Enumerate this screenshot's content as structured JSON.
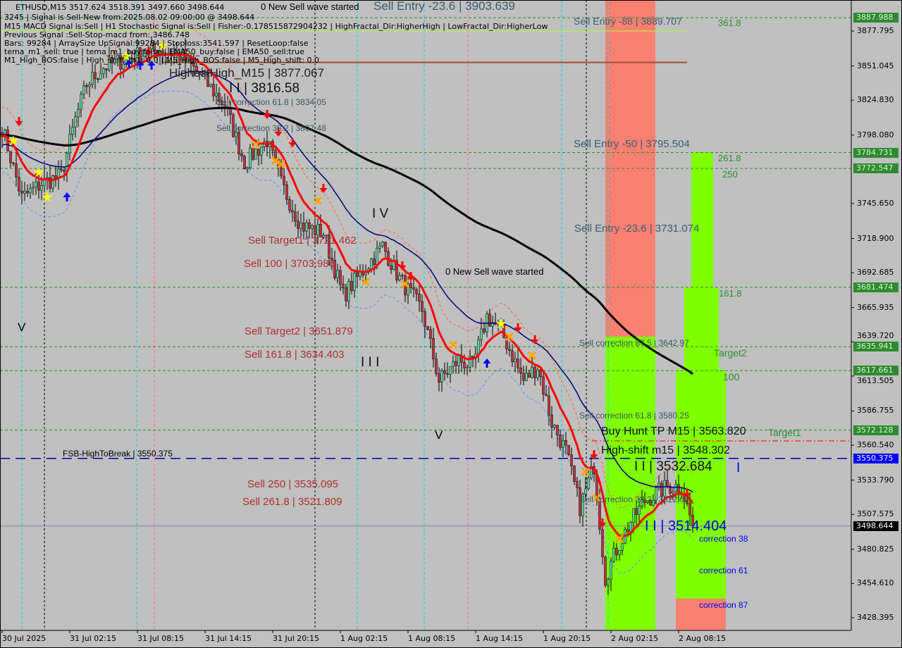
{
  "header": {
    "symbol_line": "ETHUSD,M15  3517.624 3518.391 3497.660 3498.644",
    "info_lines": [
      "3245 | Signal is Sell-New from:2025.08.02 09:00:00 @ 3498.644",
      "M15 MACD Signal is:Sell | H1 Stochastic Signal is:Sell | Fisher:-0.178515872904232 | HighFractal_Dir:HigherHigh | LowFractal_Dir:HigherLow",
      "Previous Signal :Sell-Stop-macd from: 3486.748",
      "Bars: 99284 | ArraySize UpSignal:99284 | Stoploss:3541.597 | ResetLoop:false",
      "tema_m1_sell: true | tema_m1_buy:false | EMA50_buy:false | EMA50_sell:true",
      "M1_High_BOS:false | High_shift_m1: 0.0 | M5_High_BOS:false | M5_High_shift: 0.0"
    ]
  },
  "labels": {
    "new_wave_top": "0 New Sell wave started",
    "sell_entry_top": "Sell Entry -23.6 | 3903.639",
    "highest_high": "HighestHigh_M15 | 3877.067",
    "wave_ii_top": "I I | 3816.58",
    "sell_corr_618_top": "Sell correction 61.8 | 3834.05",
    "sell_corr_382_top": "Sell correction 38.2 | 3807.48",
    "sell_entry_88": "Sell Entry -88 | 3889.707",
    "fib_3618": "361.8",
    "sell_entry_50": "Sell Entry -50 | 3795.504",
    "fib_2618": "261.8",
    "fib_250": "250",
    "sell_entry_236": "Sell Entry -23.6 | 3731.074",
    "fib_1618": "161.8",
    "wave_iv": "I V",
    "sell_target1": "Sell Target1 | 3721.462",
    "sell_100": "Sell 100 | 3703.986",
    "new_wave": "0 New Sell wave started",
    "wave_v_left": "V",
    "sell_target2": "Sell Target2 | 3651.879",
    "sell_1618": "Sell 161.8 | 3634.403",
    "wave_iii": "I I I",
    "sell_corr_875": "Sell correction 87.5 | 3642.97",
    "target2": "Target2",
    "fib_100": "100",
    "sell_corr_618": "Sell correction 61.8 | 3580.25",
    "buy_hunt_tp": "Buy Hunt TP M15 | 3563.820",
    "target1": "Target1",
    "high_shift": "High-shift m15 | 3548.302",
    "wave_ii": "I I | 3532.684",
    "wave_v_mid": "V",
    "fsb_high": "FSB-HighToBreak | 3550.375",
    "sell_250": "Sell  250 | 3535.095",
    "sell_2618": "Sell  261.8 | 3521.809",
    "sell_corr_382": "Sell correction 38.2 | 3522.65",
    "wave_i_blue": "I",
    "wave_i_price": "I I | 3514.404",
    "corr_38": "correction 38",
    "corr_61": "correction 61",
    "corr_87": "correction 87"
  },
  "price_boxes": [
    {
      "value": "3887.988",
      "bg": "#2e8b2e",
      "fg": "#d8f0d8"
    },
    {
      "value": "3784.731",
      "bg": "#2e8b2e",
      "fg": "#d8f0d8"
    },
    {
      "value": "3772.547",
      "bg": "#2e8b2e",
      "fg": "#d8f0d8"
    },
    {
      "value": "3681.474",
      "bg": "#2e8b2e",
      "fg": "#d8f0d8"
    },
    {
      "value": "3635.941",
      "bg": "#2e8b2e",
      "fg": "#d8f0d8"
    },
    {
      "value": "3617.661",
      "bg": "#2e8b2e",
      "fg": "#d8f0d8"
    },
    {
      "value": "3572.128",
      "bg": "#2e8b2e",
      "fg": "#d8f0d8"
    },
    {
      "value": "3550.375",
      "bg": "#0000ff",
      "fg": "#ffffff"
    },
    {
      "value": "3498.644",
      "bg": "#000000",
      "fg": "#ffffff"
    }
  ],
  "chart_data": {
    "type": "candlestick",
    "symbol": "ETHUSD",
    "timeframe": "M15",
    "ylim": [
      3420,
      3900
    ],
    "y_ticks": [
      "3877.795",
      "3851.045",
      "3824.830",
      "3798.080",
      "3745.650",
      "3718.900",
      "3692.685",
      "3665.935",
      "3639.720",
      "3613.505",
      "3586.755",
      "3560.540",
      "3533.790",
      "3507.575",
      "3480.825",
      "3454.610",
      "3428.395"
    ],
    "x_ticks": [
      "30 Jul 2025",
      "31 Jul 02:15",
      "31 Jul 08:15",
      "31 Jul 14:15",
      "31 Jul 20:15",
      "1 Aug 02:15",
      "1 Aug 08:15",
      "1 Aug 14:15",
      "1 Aug 20:15",
      "2 Aug 02:15",
      "2 Aug 08:15"
    ],
    "grid": false,
    "price_path": [
      [
        "30 Jul 20:15",
        3804
      ],
      [
        "30 Jul 22:00",
        3750
      ],
      [
        "30 Jul 23:45",
        3761
      ],
      [
        "31 Jul 01:30",
        3767
      ],
      [
        "31 Jul 02:45",
        3810
      ],
      [
        "31 Jul 03:45",
        3837
      ],
      [
        "31 Jul 05:15",
        3850
      ],
      [
        "31 Jul 07:45",
        3858
      ],
      [
        "31 Jul 10:15",
        3864
      ],
      [
        "31 Jul 12:15",
        3858
      ],
      [
        "31 Jul 14:00",
        3842
      ],
      [
        "31 Jul 16:00",
        3821
      ],
      [
        "31 Jul 17:45",
        3777
      ],
      [
        "31 Jul 19:45",
        3794
      ],
      [
        "31 Jul 21:00",
        3761
      ],
      [
        "31 Jul 22:45",
        3729
      ],
      [
        "1 Aug 00:45",
        3723
      ],
      [
        "1 Aug 02:30",
        3675
      ],
      [
        "1 Aug 04:30",
        3697
      ],
      [
        "1 Aug 06:00",
        3713
      ],
      [
        "1 Aug 07:30",
        3688
      ],
      [
        "1 Aug 09:30",
        3664
      ],
      [
        "1 Aug 11:00",
        3610
      ],
      [
        "1 Aug 12:45",
        3626
      ],
      [
        "1 Aug 14:00",
        3621
      ],
      [
        "1 Aug 15:15",
        3659
      ],
      [
        "1 Aug 16:30",
        3648
      ],
      [
        "1 Aug 18:30",
        3610
      ],
      [
        "1 Aug 19:45",
        3621
      ],
      [
        "1 Aug 21:00",
        3578
      ],
      [
        "1 Aug 22:15",
        3556
      ],
      [
        "1 Aug 23:30",
        3513
      ],
      [
        "2 Aug 00:45",
        3545
      ],
      [
        "2 Aug 01:45",
        3459
      ],
      [
        "2 Aug 02:45",
        3481
      ],
      [
        "2 Aug 04:00",
        3502
      ],
      [
        "2 Aug 05:15",
        3518
      ],
      [
        "2 Aug 07:15",
        3529
      ],
      [
        "2 Aug 08:30",
        3529
      ],
      [
        "2 Aug 09:30",
        3498.644
      ]
    ],
    "horizontal_levels": [
      {
        "price": 3887.988,
        "style": "dotted",
        "color": "#2e8b2e"
      },
      {
        "price": 3784.731,
        "style": "dotted",
        "color": "#2e8b2e"
      },
      {
        "price": 3772.547,
        "style": "dotted",
        "color": "#2e8b2e"
      },
      {
        "price": 3681.474,
        "style": "dotted",
        "color": "#2e8b2e"
      },
      {
        "price": 3635.941,
        "style": "dotted",
        "color": "#2e8b2e"
      },
      {
        "price": 3617.661,
        "style": "dotted",
        "color": "#2e8b2e"
      },
      {
        "price": 3572.128,
        "style": "dotted",
        "color": "#2e8b2e"
      },
      {
        "price": 3563.82,
        "style": "dashdot",
        "color": "#ff0000"
      },
      {
        "price": 3550.375,
        "style": "dashed",
        "color": "#0000aa"
      },
      {
        "price": 3498.644,
        "style": "solid",
        "color": "#7a8a9a"
      }
    ],
    "signals": {
      "sell_arrows": [
        [
          "30 Jul 21:45",
          3807.1
        ],
        [
          "31 Jul 09:15",
          3861.1
        ],
        [
          "31 Jul 19:45",
          3812.5
        ],
        [
          "31 Jul 20:45",
          3799.0
        ],
        [
          "31 Jul 22:00",
          3790.9
        ],
        [
          "1 Aug 00:45",
          3755.9
        ],
        [
          "1 Aug 07:45",
          3696.5
        ],
        [
          "1 Aug 08:30",
          3688.4
        ],
        [
          "1 Aug 18:00",
          3649.1
        ],
        [
          "1 Aug 19:30",
          3639.9
        ],
        [
          "2 Aug 00:45",
          3551.9
        ],
        [
          "2 Aug 01:30",
          3499.6
        ],
        [
          "2 Aug 09:00",
          3522.2
        ]
      ],
      "buy_arrows": [
        [
          "31 Jul 02:00",
          3752.1
        ],
        [
          "31 Jul 07:30",
          3854.1
        ],
        [
          "31 Jul 08:30",
          3853.0
        ],
        [
          "31 Jul 09:30",
          3853.0
        ],
        [
          "1 Aug 15:15",
          3624.8
        ]
      ],
      "stars": [
        [
          "30 Jul 21:15",
          3793.6
        ],
        [
          "30 Jul 23:30",
          3769.4
        ],
        [
          "31 Jul 00:15",
          3750.5
        ],
        [
          "31 Jul 07:15",
          3858.4
        ],
        [
          "31 Jul 10:30",
          3866.5
        ],
        [
          "1 Aug 16:30",
          3653.4
        ]
      ],
      "crosses": [
        [
          "31 Jul 18:45",
          3790.9
        ],
        [
          "31 Jul 20:30",
          3778.5
        ],
        [
          "31 Jul 21:00",
          3775.8
        ],
        [
          "1 Aug 00:15",
          3747.8
        ],
        [
          "1 Aug 04:30",
          3685.7
        ],
        [
          "1 Aug 08:00",
          3684.1
        ],
        [
          "1 Aug 12:15",
          3637.2
        ],
        [
          "1 Aug 17:15",
          3643.6
        ],
        [
          "1 Aug 19:15",
          3629.1
        ],
        [
          "2 Aug 00:00",
          3540.1
        ],
        [
          "2 Aug 01:00",
          3520.1
        ],
        [
          "2 Aug 03:00",
          3488.8
        ]
      ]
    },
    "colors": {
      "background": "#c0c0c0",
      "bull": "#5fd3a0",
      "bear": "#c0303a",
      "fast_ma": "#ff0000",
      "mid_ma": "#000080",
      "slow_ma": "#000000",
      "zone_sell": "#fa8072",
      "zone_buy": "#7fff00"
    }
  }
}
